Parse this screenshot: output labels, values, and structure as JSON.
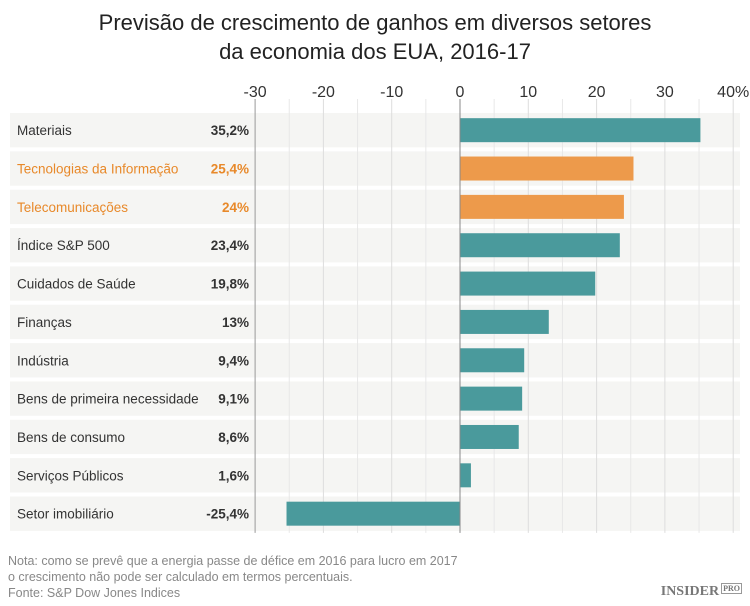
{
  "title_line1": "Previsão de crescimento de ganhos em diversos setores",
  "title_line2": "da economia dos EUA, 2016-17",
  "notes": [
    "Nota: como se prevê que a energia passe de défice em 2016 para lucro em 2017",
    "o crescimento não pode ser calculado em termos percentuais.",
    "Fonte: S&P Dow Jones Indices"
  ],
  "logo": {
    "text": "INSIDER",
    "badge": "PRO"
  },
  "colors": {
    "default": "#4a9a9c",
    "highlight": "#ed9a4b",
    "highlight_text": "#e8892a",
    "row_bg": "#f5f5f3"
  },
  "chart_data": {
    "type": "bar",
    "orientation": "horizontal",
    "title": "Previsão de crescimento de ganhos em diversos setores da economia dos EUA, 2016-17",
    "xlim": [
      -30,
      40
    ],
    "ticks": [
      -30,
      -20,
      -10,
      0,
      10,
      20,
      30,
      40
    ],
    "tick_labels": [
      "-30",
      "-20",
      "-10",
      "0",
      "10",
      "20",
      "30",
      "40%"
    ],
    "grid": true,
    "categories": [
      "Materiais",
      "Tecnologias da Informação",
      "Telecomunicações",
      "Índice S&P 500",
      "Cuidados de Saúde",
      "Finanças",
      "Indústria",
      "Bens de primeira necessidade",
      "Bens de consumo",
      "Serviços Públicos",
      "Setor imobiliário"
    ],
    "values": [
      35.2,
      25.4,
      24,
      23.4,
      19.8,
      13,
      9.4,
      9.1,
      8.6,
      1.6,
      -25.4
    ],
    "value_labels": [
      "35,2%",
      "25,4%",
      "24%",
      "23,4%",
      "19,8%",
      "13%",
      "9,4%",
      "9,1%",
      "8,6%",
      "1,6%",
      "-25,4%"
    ],
    "highlighted": [
      false,
      true,
      true,
      false,
      false,
      false,
      false,
      false,
      false,
      false,
      false
    ]
  }
}
